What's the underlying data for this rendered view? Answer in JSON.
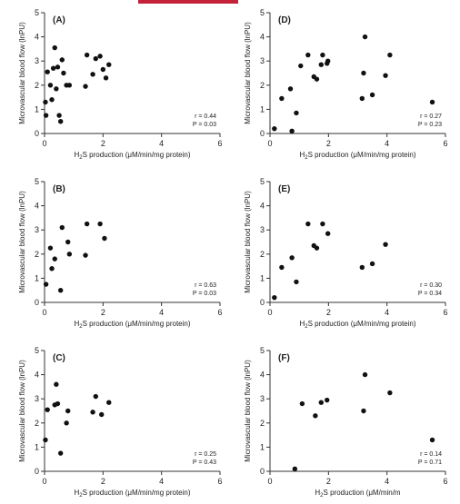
{
  "figure": {
    "accent_color": "#c4213a",
    "point_color": "#111111"
  },
  "chart_data": [
    {
      "type": "scatter",
      "panel": "(A)",
      "xlabel": "H2S production (μM/min/mg protein)",
      "ylabel": "Microvascular blood flow (lnPU)",
      "xlim": [
        0,
        6
      ],
      "ylim": [
        0,
        5
      ],
      "xticks": [
        0,
        2,
        4,
        6
      ],
      "yticks": [
        0,
        1,
        2,
        3,
        4,
        5
      ],
      "stats": {
        "r": "r = 0.44",
        "p": "P = 0.03"
      },
      "points": [
        {
          "x": 0.03,
          "y": 1.3
        },
        {
          "x": 0.05,
          "y": 0.75
        },
        {
          "x": 0.1,
          "y": 2.55
        },
        {
          "x": 0.2,
          "y": 2.0
        },
        {
          "x": 0.25,
          "y": 1.4
        },
        {
          "x": 0.3,
          "y": 2.7
        },
        {
          "x": 0.35,
          "y": 3.55
        },
        {
          "x": 0.4,
          "y": 1.85
        },
        {
          "x": 0.45,
          "y": 2.75
        },
        {
          "x": 0.5,
          "y": 0.75
        },
        {
          "x": 0.55,
          "y": 0.5
        },
        {
          "x": 0.6,
          "y": 3.05
        },
        {
          "x": 0.65,
          "y": 2.5
        },
        {
          "x": 0.75,
          "y": 2.0
        },
        {
          "x": 0.85,
          "y": 2.0
        },
        {
          "x": 1.4,
          "y": 1.95
        },
        {
          "x": 1.45,
          "y": 3.25
        },
        {
          "x": 1.65,
          "y": 2.45
        },
        {
          "x": 1.75,
          "y": 3.1
        },
        {
          "x": 1.9,
          "y": 3.2
        },
        {
          "x": 2.0,
          "y": 2.65
        },
        {
          "x": 2.1,
          "y": 2.3
        },
        {
          "x": 2.2,
          "y": 2.85
        }
      ]
    },
    {
      "type": "scatter",
      "panel": "(B)",
      "xlabel": "H2S production (μM/min/mg protein)",
      "ylabel": "Microvascular blood flow (lnPU)",
      "xlim": [
        0,
        6
      ],
      "ylim": [
        0,
        5
      ],
      "xticks": [
        0,
        2,
        4,
        6
      ],
      "yticks": [
        0,
        1,
        2,
        3,
        4,
        5
      ],
      "stats": {
        "r": "r = 0.63",
        "p": "P = 0.03"
      },
      "points": [
        {
          "x": 0.05,
          "y": 0.75
        },
        {
          "x": 0.2,
          "y": 2.25
        },
        {
          "x": 0.25,
          "y": 1.4
        },
        {
          "x": 0.35,
          "y": 1.8
        },
        {
          "x": 0.55,
          "y": 0.5
        },
        {
          "x": 0.6,
          "y": 3.1
        },
        {
          "x": 0.8,
          "y": 2.5
        },
        {
          "x": 0.85,
          "y": 2.0
        },
        {
          "x": 1.4,
          "y": 1.95
        },
        {
          "x": 1.45,
          "y": 3.25
        },
        {
          "x": 1.9,
          "y": 3.25
        },
        {
          "x": 2.05,
          "y": 2.65
        }
      ]
    },
    {
      "type": "scatter",
      "panel": "(C)",
      "xlabel": "H2S production (μM/min/mg protein)",
      "ylabel": "Microvascular blood flow (lnPU)",
      "xlim": [
        0,
        6
      ],
      "ylim": [
        0,
        5
      ],
      "xticks": [
        0,
        2,
        4,
        6
      ],
      "yticks": [
        0,
        1,
        2,
        3,
        4,
        5
      ],
      "stats": {
        "r": "r = 0.25",
        "p": "P = 0.43"
      },
      "points": [
        {
          "x": 0.03,
          "y": 1.3
        },
        {
          "x": 0.1,
          "y": 2.55
        },
        {
          "x": 0.35,
          "y": 2.75
        },
        {
          "x": 0.4,
          "y": 3.6
        },
        {
          "x": 0.45,
          "y": 2.8
        },
        {
          "x": 0.55,
          "y": 0.75
        },
        {
          "x": 0.75,
          "y": 2.0
        },
        {
          "x": 0.8,
          "y": 2.5
        },
        {
          "x": 1.65,
          "y": 2.45
        },
        {
          "x": 1.75,
          "y": 3.1
        },
        {
          "x": 1.95,
          "y": 2.35
        },
        {
          "x": 2.2,
          "y": 2.85
        }
      ]
    },
    {
      "type": "scatter",
      "panel": "(D)",
      "xlabel": "H2S production (μM/min/mg protein)",
      "ylabel": "Microvascular blood flow (lnPU)",
      "xlim": [
        0,
        6
      ],
      "ylim": [
        0,
        5
      ],
      "xticks": [
        0,
        2,
        4,
        6
      ],
      "yticks": [
        0,
        1,
        2,
        3,
        4,
        5
      ],
      "stats": {
        "r": "r = 0.27",
        "p": "P = 0.23"
      },
      "points": [
        {
          "x": 0.15,
          "y": 0.2
        },
        {
          "x": 0.4,
          "y": 1.45
        },
        {
          "x": 0.7,
          "y": 1.85
        },
        {
          "x": 0.75,
          "y": 0.1
        },
        {
          "x": 0.9,
          "y": 0.85
        },
        {
          "x": 1.05,
          "y": 2.8
        },
        {
          "x": 1.3,
          "y": 3.25
        },
        {
          "x": 1.5,
          "y": 2.35
        },
        {
          "x": 1.6,
          "y": 2.25
        },
        {
          "x": 1.75,
          "y": 2.85
        },
        {
          "x": 1.8,
          "y": 3.25
        },
        {
          "x": 1.95,
          "y": 2.9
        },
        {
          "x": 1.98,
          "y": 3.0
        },
        {
          "x": 3.15,
          "y": 1.45
        },
        {
          "x": 3.2,
          "y": 2.5
        },
        {
          "x": 3.25,
          "y": 4.0
        },
        {
          "x": 3.5,
          "y": 1.6
        },
        {
          "x": 3.95,
          "y": 2.4
        },
        {
          "x": 4.1,
          "y": 3.25
        },
        {
          "x": 5.55,
          "y": 1.3
        }
      ]
    },
    {
      "type": "scatter",
      "panel": "(E)",
      "xlabel": "H2S production (μM/min/mg protein)",
      "ylabel": "Microvascular blood flow (lnPU)",
      "xlim": [
        0,
        6
      ],
      "ylim": [
        0,
        5
      ],
      "xticks": [
        0,
        2,
        4,
        6
      ],
      "yticks": [
        0,
        1,
        2,
        3,
        4,
        5
      ],
      "stats": {
        "r": "r = 0.30",
        "p": "P = 0.34"
      },
      "points": [
        {
          "x": 0.15,
          "y": 0.2
        },
        {
          "x": 0.4,
          "y": 1.45
        },
        {
          "x": 0.75,
          "y": 1.85
        },
        {
          "x": 0.9,
          "y": 0.85
        },
        {
          "x": 1.3,
          "y": 3.25
        },
        {
          "x": 1.5,
          "y": 2.35
        },
        {
          "x": 1.6,
          "y": 2.25
        },
        {
          "x": 1.8,
          "y": 3.25
        },
        {
          "x": 1.98,
          "y": 2.85
        },
        {
          "x": 3.15,
          "y": 1.45
        },
        {
          "x": 3.5,
          "y": 1.6
        },
        {
          "x": 3.95,
          "y": 2.4
        }
      ]
    },
    {
      "type": "scatter",
      "panel": "(F)",
      "xlabel": "H2S production (μM/min/m",
      "ylabel": "Microvascular blood flow (lnPU)",
      "xlim": [
        0,
        6
      ],
      "ylim": [
        0,
        5
      ],
      "xticks": [
        0,
        2,
        4,
        6
      ],
      "yticks": [
        0,
        1,
        2,
        3,
        4,
        5
      ],
      "stats": {
        "r": "r = 0.14",
        "p": "P = 0.71"
      },
      "points": [
        {
          "x": 0.85,
          "y": 0.1
        },
        {
          "x": 1.1,
          "y": 2.8
        },
        {
          "x": 1.55,
          "y": 2.3
        },
        {
          "x": 1.75,
          "y": 2.85
        },
        {
          "x": 1.95,
          "y": 2.95
        },
        {
          "x": 3.2,
          "y": 2.5
        },
        {
          "x": 3.25,
          "y": 4.0
        },
        {
          "x": 4.1,
          "y": 3.25
        },
        {
          "x": 5.55,
          "y": 1.3
        }
      ]
    }
  ]
}
